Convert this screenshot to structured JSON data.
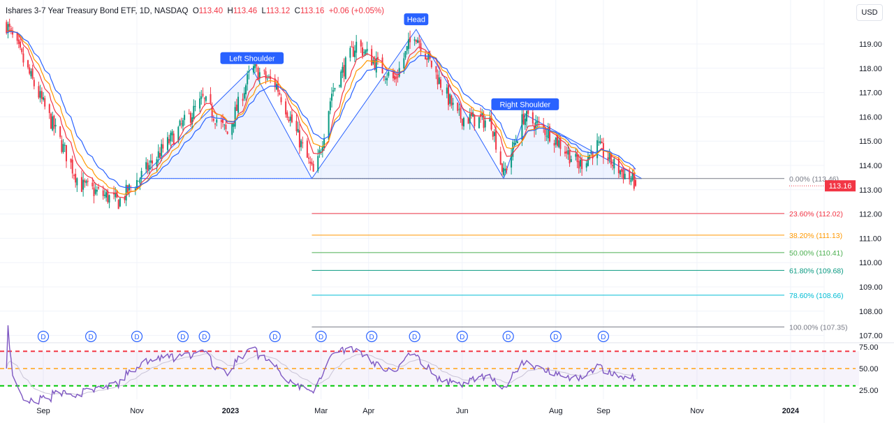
{
  "header": {
    "title": "Ishares 3-7 Year Treasury Bond ETF, 1D, NASDAQ",
    "open_label": "O",
    "open": "113.40",
    "high_label": "H",
    "high": "113.46",
    "low_label": "L",
    "low": "113.12",
    "close_label": "C",
    "close": "113.16",
    "change": "+0.06 (+0.05%)"
  },
  "currency_button": "USD",
  "last_price": "113.16",
  "colors": {
    "up": "#089981",
    "down": "#f23645",
    "ma_fast": "#f23645",
    "ma_mid": "#ff9800",
    "ma_slow": "#2962ff",
    "rsi": "#7e57c2",
    "pattern": "#2962ff"
  },
  "chart_data": {
    "type": "candlestick",
    "price_path": [
      [
        "2022-08-08",
        119.8
      ],
      [
        "2022-09-25",
        113.2
      ],
      [
        "2022-10-20",
        112.5
      ],
      [
        "2022-11-03",
        113.5
      ],
      [
        "2022-12-14",
        116.7
      ],
      [
        "2022-12-30",
        115.3
      ],
      [
        "2023-01-15",
        118.0
      ],
      [
        "2023-01-31",
        117.3
      ],
      [
        "2023-02-25",
        113.5
      ],
      [
        "2023-03-08",
        117.0
      ],
      [
        "2023-03-24",
        119.0
      ],
      [
        "2023-04-09",
        118.0
      ],
      [
        "2023-04-18",
        117.5
      ],
      [
        "2023-05-01",
        119.5
      ],
      [
        "2023-05-13",
        118.0
      ],
      [
        "2023-05-29",
        116.0
      ],
      [
        "2023-06-20",
        115.8
      ],
      [
        "2023-06-28",
        113.6
      ],
      [
        "2023-07-11",
        116.0
      ],
      [
        "2023-07-29",
        115.3
      ],
      [
        "2023-08-16",
        114.0
      ],
      [
        "2023-08-28",
        114.8
      ],
      [
        "2023-09-08",
        114.0
      ],
      [
        "2023-09-24",
        113.16
      ]
    ],
    "price_axis": {
      "ticks": [
        "119.00",
        "118.00",
        "117.00",
        "116.00",
        "115.00",
        "114.00",
        "113.00",
        "112.00",
        "111.00",
        "110.00",
        "109.00",
        "108.00",
        "107.00"
      ]
    },
    "time_axis": {
      "ticks": [
        [
          "2022-09-01",
          "Sep"
        ],
        [
          "2022-11-01",
          "Nov"
        ],
        [
          "2023-01-01",
          "2023"
        ],
        [
          "2023-03-01",
          "Mar"
        ],
        [
          "2023-04-01",
          "Apr"
        ],
        [
          "2023-06-01",
          "Jun"
        ],
        [
          "2023-08-01",
          "Aug"
        ],
        [
          "2023-09-01",
          "Sep"
        ],
        [
          "2023-11-01",
          "Nov"
        ],
        [
          "2024-01-01",
          "2024"
        ]
      ]
    },
    "head_and_shoulders": {
      "points": [
        [
          "2022-11-03",
          113.46
        ],
        [
          "2023-01-15",
          118.0
        ],
        [
          "2023-02-23",
          113.46
        ],
        [
          "2023-05-02",
          119.6
        ],
        [
          "2023-06-28",
          113.46
        ],
        [
          "2023-07-12",
          116.1
        ],
        [
          "2023-09-26",
          113.46
        ]
      ],
      "labels": [
        {
          "text": "Left Shoulder",
          "date": "2023-01-15",
          "price": 118.0
        },
        {
          "text": "Head",
          "date": "2023-05-02",
          "price": 119.6
        },
        {
          "text": "Right Shoulder",
          "date": "2023-07-12",
          "price": 116.1
        }
      ]
    },
    "fibonacci": [
      {
        "label": "0.00% (113.46)",
        "price": 113.46,
        "color": "#787b86"
      },
      {
        "label": "23.60% (112.02)",
        "price": 112.02,
        "color": "#f23645"
      },
      {
        "label": "38.20% (111.13)",
        "price": 111.13,
        "color": "#ff9800"
      },
      {
        "label": "50.00% (110.41)",
        "price": 110.41,
        "color": "#4caf50"
      },
      {
        "label": "61.80% (109.68)",
        "price": 109.68,
        "color": "#089981"
      },
      {
        "label": "78.60% (108.66)",
        "price": 108.66,
        "color": "#00bcd4"
      },
      {
        "label": "100.00% (107.35)",
        "price": 107.35,
        "color": "#787b86"
      }
    ],
    "dividends": {
      "label": "D",
      "dates": [
        "2022-09-01",
        "2022-10-02",
        "2022-11-01",
        "2022-12-01",
        "2022-12-15",
        "2023-01-30",
        "2023-03-01",
        "2023-04-03",
        "2023-05-01",
        "2023-06-01",
        "2023-07-01",
        "2023-08-01",
        "2023-09-01"
      ]
    },
    "rsi": {
      "overbought": 70,
      "middle": 50,
      "oversold": 30,
      "ticks": [
        "75.00",
        "50.00",
        "25.00"
      ]
    }
  }
}
